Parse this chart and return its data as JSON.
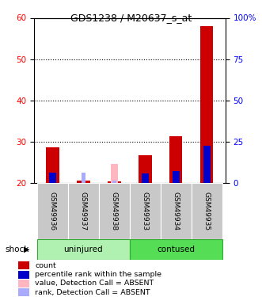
{
  "title": "GDS1238 / M20637_s_at",
  "samples": [
    "GSM49936",
    "GSM49937",
    "GSM49938",
    "GSM49933",
    "GSM49934",
    "GSM49935"
  ],
  "ylim_left": [
    20,
    60
  ],
  "ylim_right": [
    0,
    100
  ],
  "yticks_left": [
    20,
    30,
    40,
    50,
    60
  ],
  "yticks_right": [
    0,
    25,
    50,
    75,
    100
  ],
  "yticklabels_right": [
    "0",
    "25",
    "50",
    "75",
    "100%"
  ],
  "red_count": [
    28.5,
    20.5,
    20.3,
    26.7,
    31.2,
    58.0
  ],
  "blue_rank": [
    22.5,
    0.0,
    0.0,
    22.2,
    22.8,
    29.0
  ],
  "pink_value_absent": [
    0.0,
    0.0,
    24.5,
    0.0,
    0.0,
    0.0
  ],
  "lavender_rank_absent": [
    0.0,
    22.5,
    20.5,
    0.0,
    0.0,
    0.0
  ],
  "bar_bottom": 20,
  "color_red": "#cc0000",
  "color_blue": "#0000cc",
  "color_pink": "#ffb6c1",
  "color_lavender": "#aaaaff",
  "legend_items": [
    "count",
    "percentile rank within the sample",
    "value, Detection Call = ABSENT",
    "rank, Detection Call = ABSENT"
  ],
  "legend_colors": [
    "#cc0000",
    "#0000cc",
    "#ffb6c1",
    "#aaaaff"
  ],
  "background_color": "#ffffff",
  "label_bg": "#c8c8c8",
  "uninjured_color": "#b0f0b0",
  "contused_color": "#55dd55",
  "group_border": "#33aa33"
}
